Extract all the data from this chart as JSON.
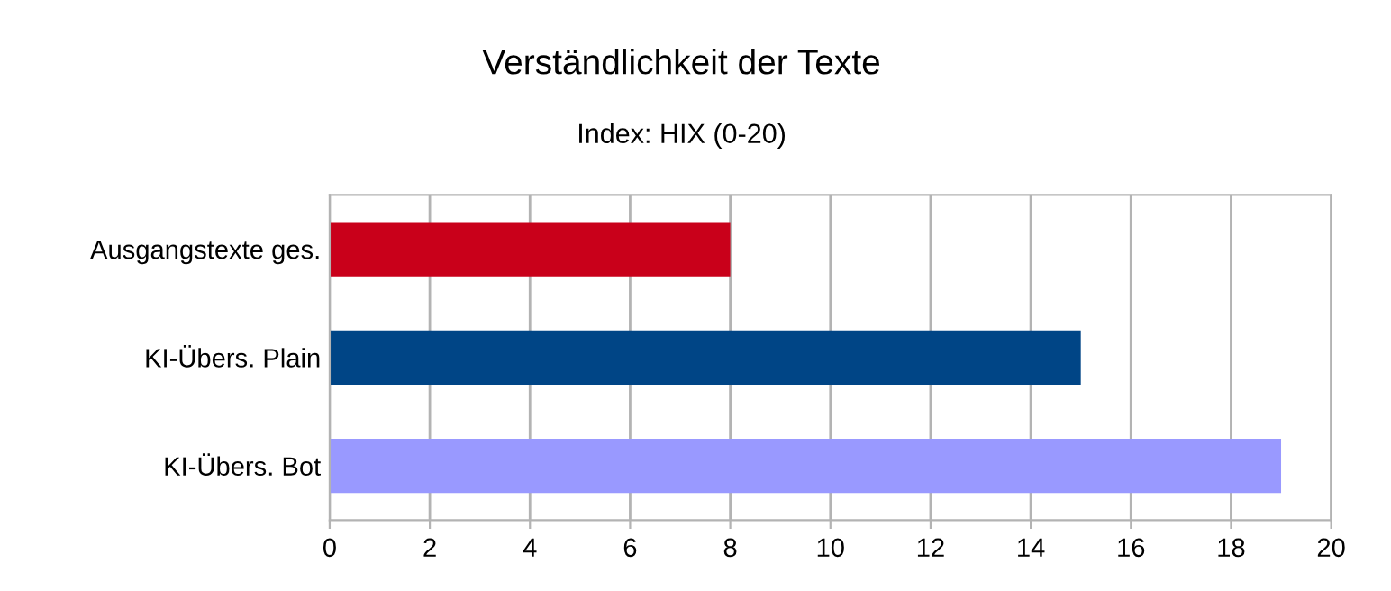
{
  "chart_data": {
    "type": "bar",
    "orientation": "horizontal",
    "title": "Verständlichkeit der Texte",
    "subtitle": "Index: HIX (0-20)",
    "categories": [
      "Ausgangstexte ges.",
      "KI-Übers. Plain",
      "KI-Übers. Bot"
    ],
    "values": [
      8,
      15,
      19
    ],
    "colors": [
      "#c9001a",
      "#004586",
      "#9999ff"
    ],
    "xlim": [
      0,
      20
    ],
    "xticks": [
      0,
      2,
      4,
      6,
      8,
      10,
      12,
      14,
      16,
      18,
      20
    ],
    "grid": "x",
    "legend": false
  }
}
